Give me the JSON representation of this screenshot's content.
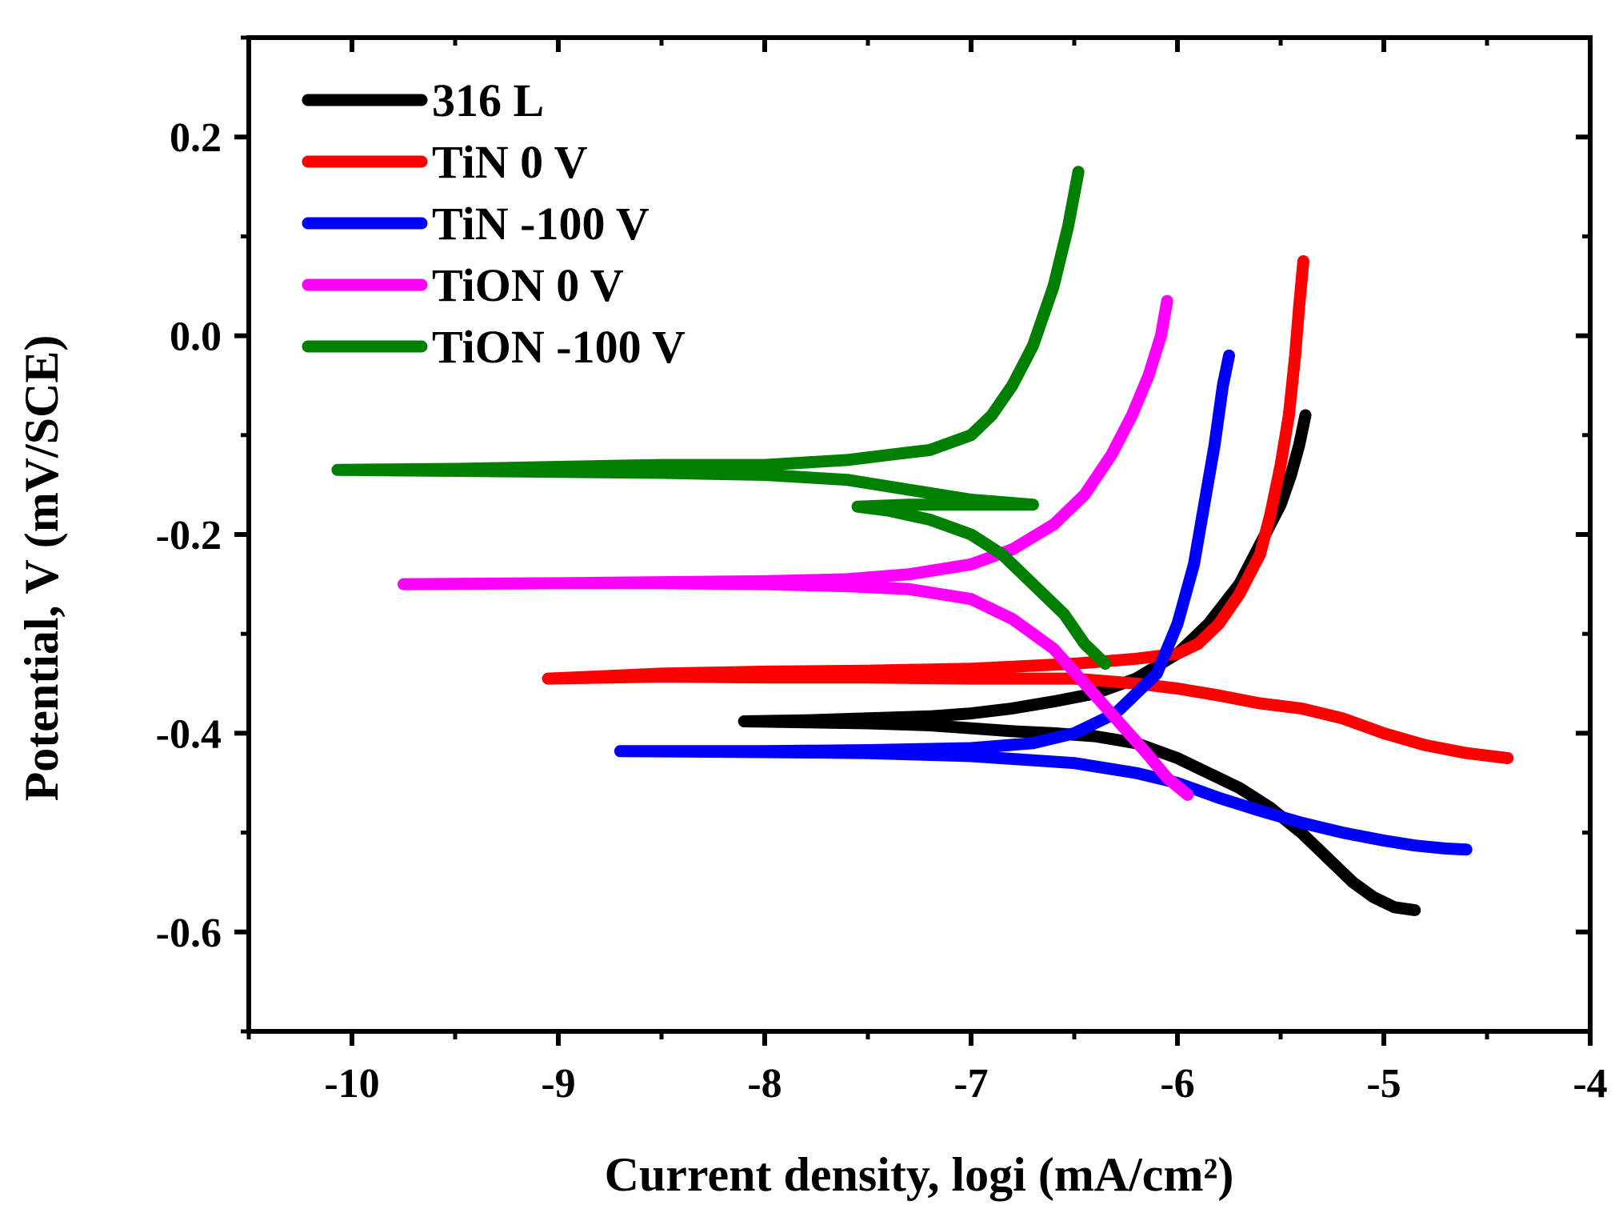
{
  "chart_data": {
    "type": "line",
    "title": "",
    "xlabel": "Current density, logi (mA/cm²)",
    "ylabel": "Potential, V (mV/SCE)",
    "xlim": [
      -10.5,
      -4.0
    ],
    "ylim": [
      -0.7,
      0.3
    ],
    "xticks": [
      -10,
      -9,
      -8,
      -7,
      -6,
      -5,
      -4
    ],
    "xtick_labels": [
      "-10",
      "-9",
      "-8",
      "-7",
      "-6",
      "-5",
      "-4"
    ],
    "yticks": [
      -0.6,
      -0.4,
      -0.2,
      0.0,
      0.2
    ],
    "ytick_labels": [
      "-0.6",
      "-0.4",
      "-0.2",
      "0.0",
      "0.2"
    ],
    "legend_position": "top-left",
    "series": [
      {
        "name": "316 L",
        "color": "#000000",
        "x": [
          -4.85,
          -4.95,
          -5.05,
          -5.15,
          -5.25,
          -5.4,
          -5.55,
          -5.7,
          -5.85,
          -6.0,
          -6.2,
          -6.4,
          -6.6,
          -6.8,
          -7.0,
          -7.2,
          -7.5,
          -7.8,
          -8.1,
          -8.1,
          -7.8,
          -7.5,
          -7.2,
          -7.0,
          -6.8,
          -6.6,
          -6.4,
          -6.2,
          -6.0,
          -5.85,
          -5.7,
          -5.6,
          -5.5,
          -5.45,
          -5.41,
          -5.38
        ],
        "y": [
          -0.578,
          -0.575,
          -0.565,
          -0.55,
          -0.53,
          -0.5,
          -0.475,
          -0.455,
          -0.44,
          -0.425,
          -0.41,
          -0.403,
          -0.4,
          -0.398,
          -0.395,
          -0.392,
          -0.39,
          -0.389,
          -0.388,
          -0.388,
          -0.387,
          -0.385,
          -0.383,
          -0.38,
          -0.375,
          -0.368,
          -0.36,
          -0.345,
          -0.32,
          -0.29,
          -0.25,
          -0.21,
          -0.17,
          -0.14,
          -0.11,
          -0.08
        ]
      },
      {
        "name": "TiN 0 V",
        "color": "#ff0000",
        "x": [
          -4.4,
          -4.6,
          -4.8,
          -5.0,
          -5.2,
          -5.4,
          -5.6,
          -5.8,
          -6.0,
          -6.2,
          -6.5,
          -7.0,
          -7.5,
          -8.0,
          -8.5,
          -9.05,
          -9.05,
          -8.5,
          -8.0,
          -7.5,
          -7.0,
          -6.5,
          -6.2,
          -6.0,
          -5.9,
          -5.8,
          -5.7,
          -5.6,
          -5.55,
          -5.5,
          -5.46,
          -5.43,
          -5.41,
          -5.39
        ],
        "y": [
          -0.425,
          -0.42,
          -0.412,
          -0.4,
          -0.385,
          -0.375,
          -0.37,
          -0.362,
          -0.355,
          -0.35,
          -0.345,
          -0.345,
          -0.344,
          -0.344,
          -0.343,
          -0.345,
          -0.345,
          -0.34,
          -0.338,
          -0.337,
          -0.335,
          -0.33,
          -0.325,
          -0.32,
          -0.31,
          -0.29,
          -0.26,
          -0.22,
          -0.18,
          -0.13,
          -0.08,
          -0.02,
          0.03,
          0.075
        ]
      },
      {
        "name": "TiN -100 V",
        "color": "#0000ff",
        "x": [
          -4.6,
          -4.7,
          -4.85,
          -5.0,
          -5.2,
          -5.4,
          -5.6,
          -5.8,
          -6.0,
          -6.2,
          -6.5,
          -7.0,
          -7.5,
          -8.0,
          -8.7,
          -8.7,
          -8.0,
          -7.5,
          -7.0,
          -6.7,
          -6.5,
          -6.3,
          -6.1,
          -6.0,
          -5.92,
          -5.87,
          -5.82,
          -5.78,
          -5.75
        ],
        "y": [
          -0.517,
          -0.516,
          -0.513,
          -0.508,
          -0.5,
          -0.49,
          -0.478,
          -0.465,
          -0.45,
          -0.44,
          -0.43,
          -0.423,
          -0.42,
          -0.419,
          -0.418,
          -0.418,
          -0.418,
          -0.417,
          -0.415,
          -0.41,
          -0.4,
          -0.38,
          -0.34,
          -0.29,
          -0.23,
          -0.17,
          -0.11,
          -0.05,
          -0.02
        ]
      },
      {
        "name": "TiON 0 V",
        "color": "#ff00ff",
        "x": [
          -5.95,
          -6.05,
          -6.15,
          -6.3,
          -6.45,
          -6.6,
          -6.8,
          -7.0,
          -7.3,
          -7.6,
          -8.0,
          -8.5,
          -9.0,
          -9.75,
          -9.75,
          -9.0,
          -8.5,
          -8.0,
          -7.6,
          -7.3,
          -7.0,
          -6.8,
          -6.6,
          -6.45,
          -6.32,
          -6.22,
          -6.14,
          -6.08,
          -6.05
        ],
        "y": [
          -0.462,
          -0.445,
          -0.42,
          -0.385,
          -0.35,
          -0.315,
          -0.285,
          -0.265,
          -0.255,
          -0.252,
          -0.25,
          -0.249,
          -0.249,
          -0.25,
          -0.25,
          -0.249,
          -0.248,
          -0.247,
          -0.245,
          -0.24,
          -0.23,
          -0.215,
          -0.19,
          -0.16,
          -0.12,
          -0.08,
          -0.04,
          0.0,
          0.035
        ]
      },
      {
        "name": "TiON -100 V",
        "color": "#008000",
        "x": [
          -6.35,
          -6.45,
          -6.55,
          -6.7,
          -6.85,
          -7.0,
          -7.2,
          -7.4,
          -7.55,
          -7.3,
          -7.0,
          -6.7,
          -7.0,
          -7.3,
          -7.6,
          -8.0,
          -8.5,
          -9.0,
          -9.5,
          -10.07,
          -10.07,
          -9.5,
          -9.0,
          -8.5,
          -8.0,
          -7.6,
          -7.4,
          -7.2,
          -7.0,
          -6.9,
          -6.8,
          -6.7,
          -6.6,
          -6.53,
          -6.48
        ],
        "y": [
          -0.33,
          -0.31,
          -0.28,
          -0.25,
          -0.22,
          -0.2,
          -0.185,
          -0.176,
          -0.172,
          -0.17,
          -0.17,
          -0.17,
          -0.165,
          -0.155,
          -0.145,
          -0.14,
          -0.138,
          -0.137,
          -0.136,
          -0.135,
          -0.135,
          -0.134,
          -0.132,
          -0.13,
          -0.13,
          -0.125,
          -0.12,
          -0.115,
          -0.1,
          -0.08,
          -0.05,
          -0.01,
          0.05,
          0.11,
          0.165
        ]
      }
    ]
  }
}
